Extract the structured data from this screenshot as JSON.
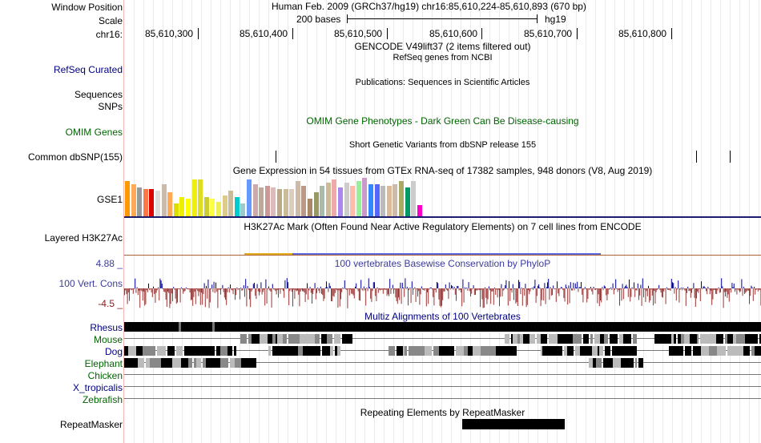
{
  "header": {
    "window_position_label": "Window Position",
    "scale_label": "Scale",
    "chrom_label": "chr16:",
    "window_position_text": "Human Feb. 2009 (GRCh37/hg19)   chr16:85,610,224-85,610,893 (670 bp)",
    "scale_text": "200 bases",
    "assembly": "hg19",
    "coordinates": [
      "85,610,300",
      "85,610,400",
      "85,610,500",
      "85,610,600",
      "85,610,700",
      "85,610,800"
    ]
  },
  "tracks": {
    "gencode_title": "GENCODE V49lift37 (2 items filtered out)",
    "refseq_label": "RefSeq Curated",
    "refseq_title": "RefSeq genes from NCBI",
    "sequences_label": "Sequences",
    "publications_title": "Publications: Sequences in Scientific Articles",
    "snps_label": "SNPs",
    "omim_label": "OMIM Genes",
    "omim_title": "OMIM Gene Phenotypes - Dark Green Can Be Disease-causing",
    "dbsnp_title": "Short Genetic Variants from dbSNP release 155",
    "dbsnp_label": "Common dbSNP(155)",
    "gtex_title": "Gene Expression in 54 tissues from GTEx RNA-seq of 17382 samples, 948 donors (V8, Aug 2019)",
    "gtex_label": "GSE1",
    "h3k27ac_title": "H3K27Ac Mark (Often Found Near Active Regulatory Elements) on 7 cell lines from ENCODE",
    "h3k27ac_label": "Layered H3K27Ac",
    "cons_max": "4.88 _",
    "cons_min": "-4.5 _",
    "cons_label": "100 Vert. Cons",
    "cons_title": "100 vertebrates Basewise Conservation by PhyloP",
    "multiz_title": "Multiz Alignments of 100 Vertebrates",
    "species": [
      "Rhesus",
      "Mouse",
      "Dog",
      "Elephant",
      "Chicken",
      "X_tropicalis",
      "Zebrafish"
    ],
    "repeat_title": "Repeating Elements by RepeatMasker",
    "repeat_label": "RepeatMasker"
  },
  "colors": {
    "gtex_bars": [
      "#ff9900",
      "#ffaa55",
      "#999999",
      "#ff7744",
      "#dd0000",
      "#dddddd",
      "#ccbbaa",
      "#ffaa55",
      "#dddd00",
      "#eeee00",
      "#ffff00",
      "#eeee11",
      "#dddd22",
      "#cccc33",
      "#ffff44",
      "#eeee55",
      "#ddcc88",
      "#ccbb99",
      "#00cccc",
      "#99cccc",
      "#6699ff",
      "#ccaaaa",
      "#bbaa99",
      "#cc9999",
      "#ddbbbb",
      "#bbaa88",
      "#ccbb99",
      "#ddccbb",
      "#ccbbaa",
      "#bb9988",
      "#aa8866",
      "#999966",
      "#aabbaa",
      "#ccbb99",
      "#eeaaaa",
      "#aa88ee",
      "#cccccc",
      "#ffbbaa",
      "#99ee99",
      "#cc99cc",
      "#3388ff",
      "#5566ff",
      "#bbbbbb",
      "#ddbb99",
      "#ccbbaa",
      "#aaaa66",
      "#009966",
      "#cccccc",
      "#ff00cc"
    ],
    "conservation_positive": "#000099",
    "conservation_negative": "#993333",
    "label_navy": "#000080",
    "label_green": "#006400"
  }
}
